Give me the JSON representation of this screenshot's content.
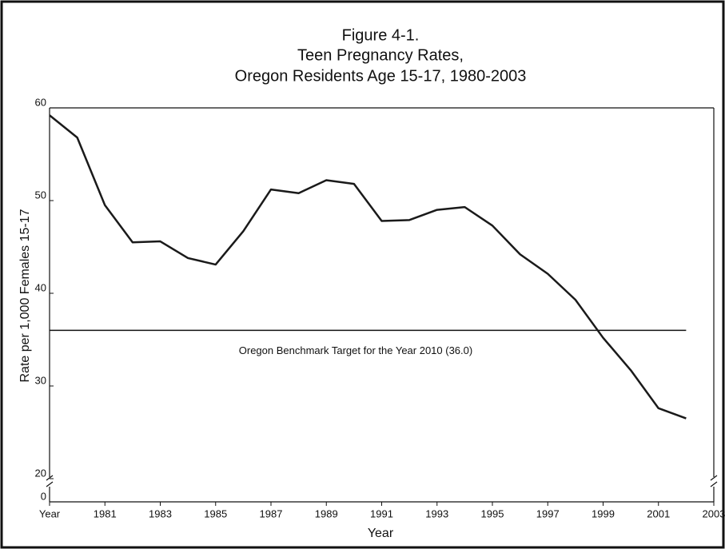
{
  "chart_data": {
    "type": "line",
    "title": [
      "Figure 4-1.",
      "Teen Pregnancy Rates,",
      "Oregon Residents Age 15-17, 1980-2003"
    ],
    "x_label": "Year",
    "y_label": "Rate per 1,000 Females 15-17",
    "x": [
      1979,
      1980,
      1981,
      1982,
      1983,
      1984,
      1985,
      1986,
      1987,
      1988,
      1989,
      1990,
      1991,
      1992,
      1993,
      1994,
      1995,
      1996,
      1997,
      1998,
      1999,
      2000,
      2001,
      2002
    ],
    "series": [
      {
        "name": "Teen pregnancy rate",
        "color": "#1a1a1a",
        "values": [
          59.2,
          56.8,
          49.5,
          45.5,
          45.6,
          43.8,
          43.1,
          46.7,
          51.2,
          50.8,
          52.2,
          51.8,
          47.8,
          47.9,
          49.0,
          49.3,
          47.3,
          44.2,
          42.1,
          39.3,
          35.2,
          31.7,
          27.6,
          26.5
        ]
      }
    ],
    "xlim": [
      1979,
      2003
    ],
    "xticks": [
      {
        "value": 1979,
        "label": "Year"
      },
      1981,
      1983,
      1985,
      1987,
      1989,
      1991,
      1993,
      1995,
      1997,
      1999,
      2001,
      2003
    ],
    "ylim": [
      20,
      60
    ],
    "yticks": [
      0,
      20,
      30,
      40,
      50,
      60
    ],
    "axis_break": true,
    "reference_lines": [
      {
        "value": 36.0,
        "label": "Oregon Benchmark Target for the Year 2010 (36.0)"
      }
    ]
  }
}
